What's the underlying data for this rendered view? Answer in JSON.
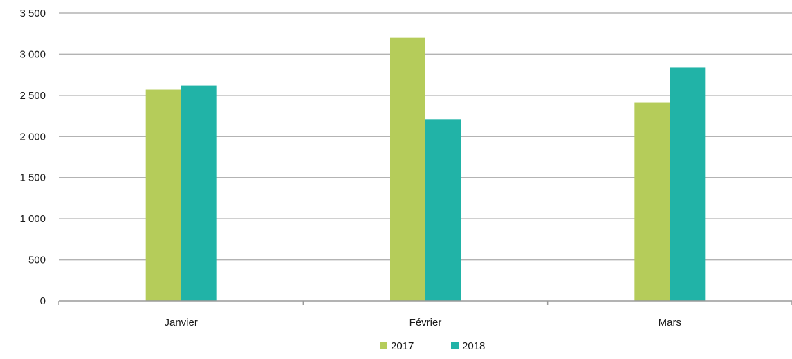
{
  "chart_data": {
    "type": "bar",
    "categories": [
      "Janvier",
      "Février",
      "Mars"
    ],
    "series": [
      {
        "name": "2017",
        "values": [
          2570,
          3200,
          2410
        ],
        "color": "#b5cc5a"
      },
      {
        "name": "2018",
        "values": [
          2620,
          2210,
          2840
        ],
        "color": "#21b3a7"
      }
    ],
    "ylim": [
      0,
      3500
    ],
    "yticks": [
      0,
      500,
      1000,
      1500,
      2000,
      2500,
      3000,
      3500
    ],
    "ytick_labels": [
      "0",
      "500",
      "1 000",
      "1 500",
      "2 000",
      "2 500",
      "3 000",
      "3 500"
    ],
    "grid": true,
    "legend_position": "bottom-center",
    "colors": {
      "grid": "#b3b3b3",
      "axis": "#9a9a9a"
    }
  }
}
